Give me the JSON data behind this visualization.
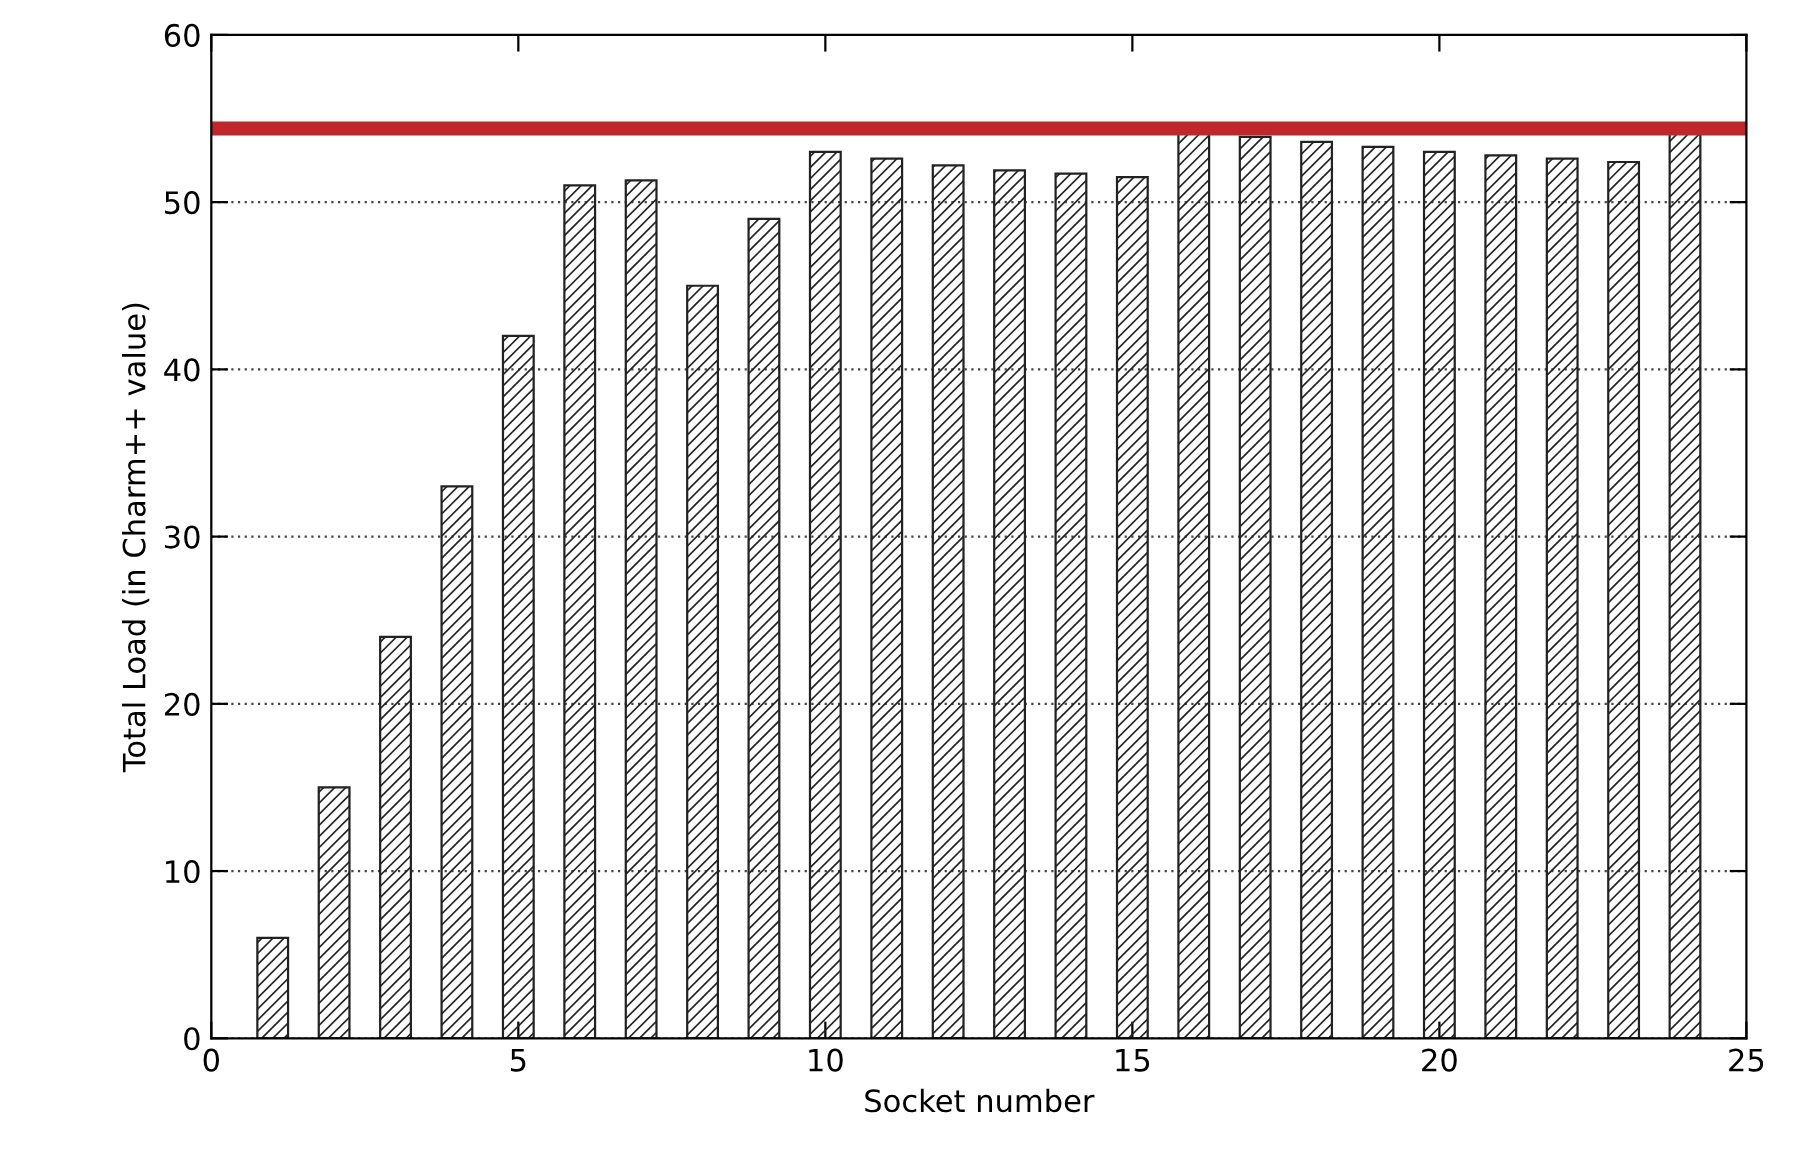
{
  "chart_data": {
    "type": "bar",
    "xlabel": "Socket number",
    "ylabel": "Total Load (in Charm++ value)",
    "x": [
      1,
      2,
      3,
      4,
      5,
      6,
      7,
      8,
      9,
      10,
      11,
      12,
      13,
      14,
      15,
      16,
      17,
      18,
      19,
      20,
      21,
      22,
      23,
      24
    ],
    "values": [
      6,
      15,
      24,
      33,
      42,
      51,
      51.3,
      45,
      49,
      53,
      52.6,
      52.2,
      51.9,
      51.7,
      51.5,
      54.2,
      53.9,
      53.6,
      53.3,
      53.0,
      52.8,
      52.6,
      52.4,
      54.2
    ],
    "color": "#222222",
    "xlim": [
      0,
      25
    ],
    "xticks": [
      0,
      5,
      10,
      15,
      20,
      25
    ],
    "ylim": [
      0,
      60
    ],
    "yticks": [
      0,
      10,
      20,
      30,
      40,
      50,
      60
    ],
    "grid": "y",
    "ref_lines": [
      {
        "axis": "y",
        "value": 54.4,
        "label": null,
        "color": "#c0272d",
        "line_style": "solid"
      }
    ]
  }
}
